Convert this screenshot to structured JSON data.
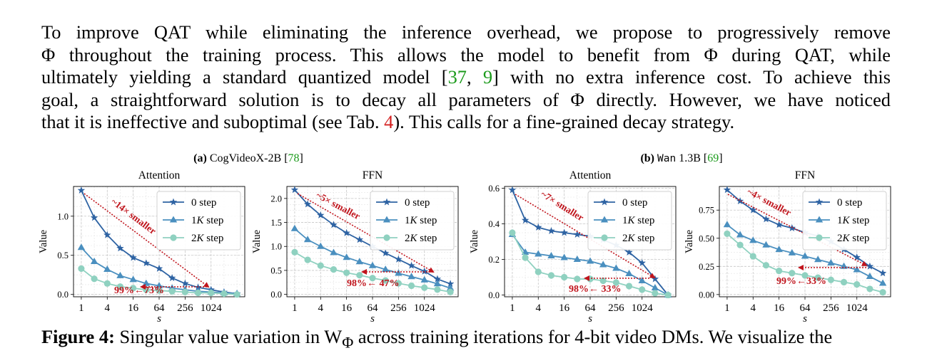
{
  "paragraph": {
    "line1": "To improve QAT while eliminating the inference overhead, we propose to progressively remove",
    "line2": "Φ throughout the training process. This allows the model to benefit from Φ during QAT, while",
    "line3_a": "ultimately yielding a standard quantized model [",
    "line3_c1": "37",
    "line3_sep": ", ",
    "line3_c2": "9",
    "line3_b": "] with no extra inference cost. To achieve this",
    "line4": "goal, a straightforward solution is to decay all parameters of Φ directly. However, we have noticed",
    "line5_a": "that it is ineffective and suboptimal (see Tab. ",
    "line5_ref": "4",
    "line5_b": "). This calls for a fine-grained decay strategy."
  },
  "figure": {
    "group_a": {
      "prefix": "(a)",
      "model": "CogVideoX-2B",
      "cite": "78"
    },
    "group_b": {
      "prefix": "(b)",
      "model": "Wan",
      "model_suffix": "1.3B",
      "cite": "69"
    },
    "caption_bold": "Figure 4:",
    "caption_text": " Singular value variation in W",
    "caption_sub": "Φ",
    "caption_rest": " across training iterations for 4-bit video DMs. We visualize the",
    "colors": {
      "step0": "#2e63a3",
      "step1": "#4a8fbf",
      "step2": "#8fd1c0",
      "arrow": "#c0141c"
    }
  },
  "chart_data": [
    {
      "type": "line",
      "title": "Attention",
      "xlabel": "s",
      "ylabel": "Value",
      "x_ticks": [
        "1",
        "4",
        "16",
        "64",
        "256",
        "1024"
      ],
      "xlim_log2": [
        -0.6,
        12.6
      ],
      "ylim": [
        -0.03,
        1.38
      ],
      "y_ticks": [
        "0.0",
        "0.5",
        "1.0"
      ],
      "y_tick_values": [
        0,
        0.5,
        1.0
      ],
      "grid": true,
      "legend_position": "top-right",
      "series": [
        {
          "name": "0 step",
          "marker": "star",
          "y": [
            1.33,
            0.98,
            0.76,
            0.59,
            0.47,
            0.4,
            0.33,
            0.21,
            0.14,
            0.09,
            0.06,
            0.03,
            0.01
          ]
        },
        {
          "name": "1K step",
          "marker": "triangle",
          "y": [
            0.6,
            0.42,
            0.32,
            0.24,
            0.19,
            0.14,
            0.11,
            0.08,
            0.06,
            0.04,
            0.03,
            0.02,
            0.01
          ]
        },
        {
          "name": "2K step",
          "marker": "circle",
          "y": [
            0.33,
            0.2,
            0.14,
            0.1,
            0.08,
            0.06,
            0.05,
            0.04,
            0.03,
            0.02,
            0.02,
            0.01,
            0.0
          ]
        }
      ],
      "annotations": {
        "diag": "~14× smaller",
        "horiz": "99%←73%"
      }
    },
    {
      "type": "line",
      "title": "FFN",
      "xlabel": "s",
      "ylabel": "Value",
      "x_ticks": [
        "1",
        "4",
        "16",
        "64",
        "256",
        "1024"
      ],
      "xlim_log2": [
        -0.6,
        12.6
      ],
      "ylim": [
        -0.05,
        2.25
      ],
      "y_ticks": [
        "0.0",
        "0.5",
        "1.0",
        "1.5",
        "2.0"
      ],
      "y_tick_values": [
        0,
        0.5,
        1.0,
        1.5,
        2.0
      ],
      "grid": true,
      "legend_position": "top-right",
      "series": [
        {
          "name": "0 step",
          "marker": "star",
          "y": [
            2.18,
            1.88,
            1.65,
            1.45,
            1.28,
            1.14,
            1.0,
            0.86,
            0.73,
            0.6,
            0.48,
            0.32,
            0.22
          ]
        },
        {
          "name": "1K step",
          "marker": "triangle",
          "y": [
            1.37,
            1.14,
            1.0,
            0.87,
            0.77,
            0.68,
            0.6,
            0.52,
            0.44,
            0.37,
            0.3,
            0.22,
            0.13
          ]
        },
        {
          "name": "2K step",
          "marker": "circle",
          "y": [
            0.88,
            0.72,
            0.6,
            0.52,
            0.45,
            0.4,
            0.34,
            0.29,
            0.23,
            0.18,
            0.14,
            0.1,
            0.05
          ]
        }
      ],
      "annotations": {
        "diag": "~5× smaller",
        "horiz": "98%← 47%"
      }
    },
    {
      "type": "line",
      "title": "Attention",
      "xlabel": "s",
      "ylabel": "Value",
      "x_ticks": [
        "1",
        "4",
        "16",
        "64",
        "256",
        "1024"
      ],
      "xlim_log2": [
        -0.6,
        12.6
      ],
      "ylim": [
        -0.01,
        0.61
      ],
      "y_ticks": [
        "0.0",
        "0.2",
        "0.4",
        "0.6"
      ],
      "y_tick_values": [
        0,
        0.2,
        0.4,
        0.6
      ],
      "grid": true,
      "legend_position": "top-right",
      "series": [
        {
          "name": "0 step",
          "marker": "star",
          "y": [
            0.59,
            0.42,
            0.38,
            0.36,
            0.35,
            0.34,
            0.33,
            0.31,
            0.28,
            0.24,
            0.18,
            0.09,
            0.0
          ]
        },
        {
          "name": "1K step",
          "marker": "triangle",
          "y": [
            0.34,
            0.24,
            0.23,
            0.22,
            0.21,
            0.2,
            0.19,
            0.17,
            0.15,
            0.12,
            0.08,
            0.04,
            0.0
          ]
        },
        {
          "name": "2K step",
          "marker": "circle",
          "y": [
            0.35,
            0.21,
            0.13,
            0.11,
            0.1,
            0.09,
            0.09,
            0.08,
            0.07,
            0.05,
            0.03,
            0.01,
            0.0
          ]
        }
      ],
      "annotations": {
        "diag": "~7× smaller",
        "horiz": "98%← 33%"
      }
    },
    {
      "type": "line",
      "title": "FFN",
      "xlabel": "s",
      "ylabel": "Value",
      "x_ticks": [
        "1",
        "4",
        "16",
        "64",
        "256",
        "1024"
      ],
      "xlim_log2": [
        -0.6,
        12.6
      ],
      "ylim": [
        -0.02,
        0.96
      ],
      "y_ticks": [
        "0.00",
        "0.25",
        "0.50",
        "0.75"
      ],
      "y_tick_values": [
        0,
        0.25,
        0.5,
        0.75
      ],
      "grid": true,
      "legend_position": "top-right",
      "series": [
        {
          "name": "0 step",
          "marker": "star",
          "y": [
            0.93,
            0.83,
            0.75,
            0.67,
            0.62,
            0.59,
            0.55,
            0.52,
            0.47,
            0.4,
            0.33,
            0.25,
            0.19
          ]
        },
        {
          "name": "1K step",
          "marker": "triangle",
          "y": [
            0.62,
            0.53,
            0.48,
            0.44,
            0.4,
            0.37,
            0.34,
            0.31,
            0.28,
            0.25,
            0.22,
            0.16,
            0.1
          ]
        },
        {
          "name": "2K step",
          "marker": "circle",
          "y": [
            0.54,
            0.44,
            0.34,
            0.26,
            0.21,
            0.19,
            0.17,
            0.15,
            0.13,
            0.11,
            0.09,
            0.05,
            0.02
          ]
        }
      ],
      "annotations": {
        "diag": "~4× smaller",
        "horiz": "99%←33%"
      }
    }
  ]
}
